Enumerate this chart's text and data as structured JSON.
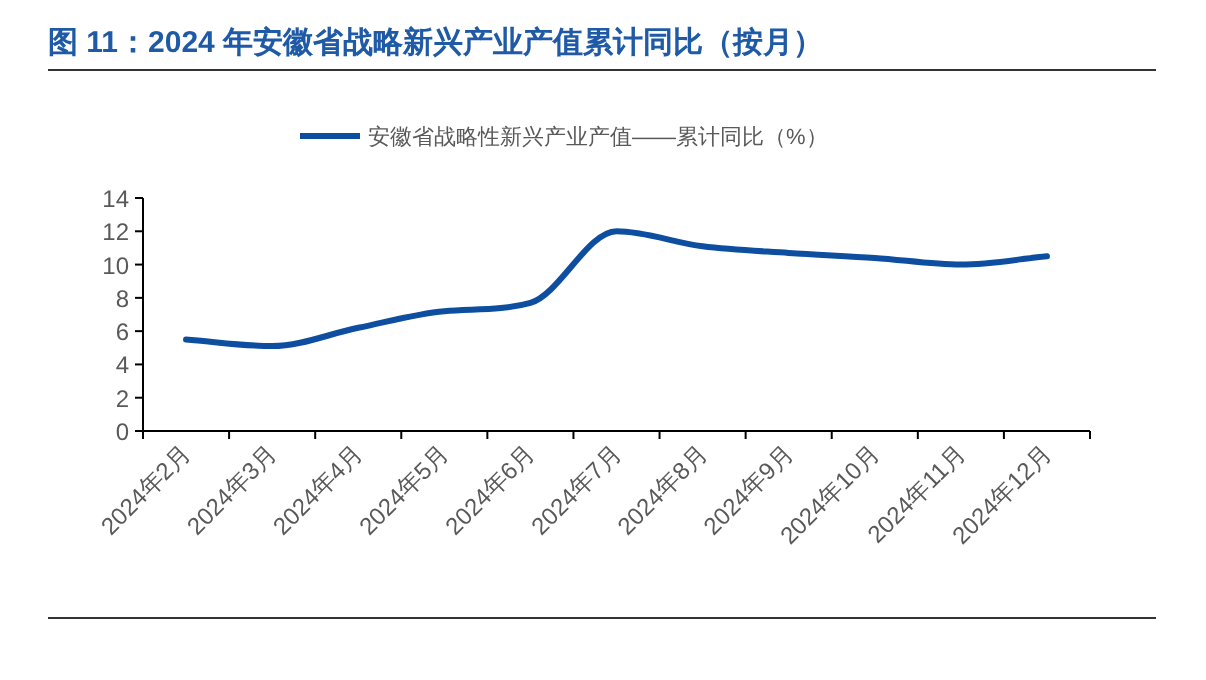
{
  "chart_data": {
    "type": "line",
    "title": "图 11：2024 年安徽省战略新兴产业产值累计同比（按月）",
    "categories": [
      "2024年2月",
      "2024年3月",
      "2024年4月",
      "2024年5月",
      "2024年6月",
      "2024年7月",
      "2024年8月",
      "2024年9月",
      "2024年10月",
      "2024年11月",
      "2024年12月"
    ],
    "series": [
      {
        "name": "安徽省战略性新兴产业产值——累计同比（%）",
        "color": "#0d4ea0",
        "values": [
          5.5,
          5.1,
          6.2,
          7.2,
          7.7,
          12.0,
          11.1,
          10.7,
          10.4,
          10.0,
          10.5
        ]
      }
    ],
    "ylim": [
      0,
      14
    ],
    "yticks": [
      0,
      2,
      4,
      6,
      8,
      10,
      12,
      14
    ],
    "grid": false,
    "legend": "top",
    "line_style": "solid",
    "marker": "none"
  }
}
